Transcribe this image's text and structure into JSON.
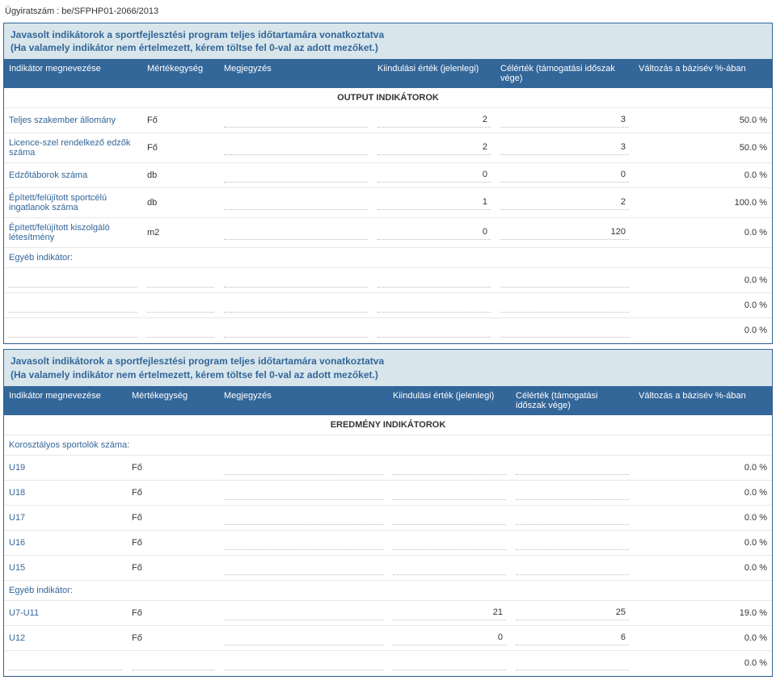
{
  "docNumber": "Ügyiratszám : be/SFPHP01-2066/2013",
  "section1": {
    "title": "Javasolt indikátorok a sportfejlesztési program teljes időtartamára vonatkoztatva",
    "subtitle": "(Ha valamely indikátor nem értelmezett, kérem töltse fel 0-val az adott mezőket.)",
    "columns": {
      "c1": "Indikátor megnevezése",
      "c2": "Mértékegység",
      "c3": "Megjegyzés",
      "c4": "Kiindulási érték (jelenlegi)",
      "c5": "Célérték (támogatási időszak vége)",
      "c6": "Változás a bázisév %-ában"
    },
    "subheader": "OUTPUT INDIKÁTOROK",
    "rows": [
      {
        "label": "Teljes szakember állomány",
        "unit": "Fő",
        "start": "2",
        "end": "3",
        "pct": "50.0 %"
      },
      {
        "label": "Licence-szel rendelkező edzők száma",
        "unit": "Fő",
        "start": "2",
        "end": "3",
        "pct": "50.0 %"
      },
      {
        "label": "Edzőtáborok száma",
        "unit": "db",
        "start": "0",
        "end": "0",
        "pct": "0.0 %"
      },
      {
        "label": "Épített/felújított sportcélú ingatlanok száma",
        "unit": "db",
        "start": "1",
        "end": "2",
        "pct": "100.0 %"
      },
      {
        "label": "Épített/felújított kiszolgáló létesítmény",
        "unit": "m2",
        "start": "0",
        "end": "120",
        "pct": "0.0 %"
      }
    ],
    "otherLabel": "Egyéb indikátor:"
  },
  "section2": {
    "title": "Javasolt indikátorok a sportfejlesztési program teljes időtartamára vonatkoztatva",
    "subtitle": "(Ha valamely indikátor nem értelmezett, kérem töltse fel 0-val az adott mezőket.)",
    "columns": {
      "c1": "Indikátor megnevezése",
      "c2": "Mértékegység",
      "c3": "Megjegyzés",
      "c4": "Kiindulási érték (jelenlegi)",
      "c5": "Célérték (támogatási időszak vége)",
      "c6": "Változás a bázisév %-ában"
    },
    "subheader": "EREDMÉNY INDIKÁTOROK",
    "ageLabel": "Korosztályos sportolók száma:",
    "ageRows": [
      {
        "label": "U19",
        "unit": "Fő",
        "pct": "0.0 %"
      },
      {
        "label": "U18",
        "unit": "Fő",
        "pct": "0.0 %"
      },
      {
        "label": "U17",
        "unit": "Fő",
        "pct": "0.0 %"
      },
      {
        "label": "U16",
        "unit": "Fő",
        "pct": "0.0 %"
      },
      {
        "label": "U15",
        "unit": "Fő",
        "pct": "0.0 %"
      }
    ],
    "otherLabel": "Egyéb indikátor:",
    "otherRows": [
      {
        "label": "U7-U11",
        "unit": "Fő",
        "start": "21",
        "end": "25",
        "pct": "19.0 %"
      },
      {
        "label": "U12",
        "unit": "Fő",
        "start": "0",
        "end": "6",
        "pct": "0.0 %"
      }
    ]
  },
  "zeroPct": "0.0 %",
  "colors": {
    "headerBg": "#336699",
    "sectionBg": "#d8e6ec",
    "border": "#336699",
    "text": "#333333"
  }
}
